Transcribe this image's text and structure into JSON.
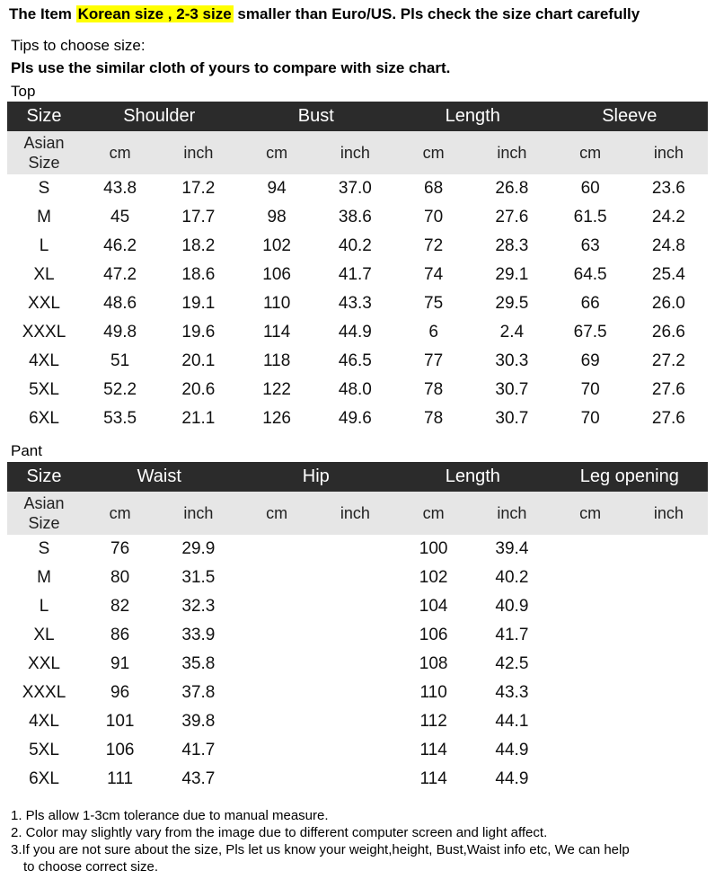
{
  "headline": {
    "prefix": "The Item",
    "highlight": "Korean size , 2-3 size",
    "suffix": " smaller than Euro/US. Pls check the size chart carefully"
  },
  "tips": {
    "line1": "Tips to choose size:",
    "line2": "Pls use the similar cloth of yours to compare with size chart."
  },
  "colors": {
    "header_bg": "#2b2b2b",
    "subheader_bg": "#e6e6e6",
    "highlight": "#ffff00"
  },
  "top": {
    "label": "Top",
    "headers": [
      "Size",
      "Shoulder",
      "Bust",
      "Length",
      "Sleeve"
    ],
    "asian_size": [
      "Asian",
      "Size"
    ],
    "units": [
      "cm",
      "inch",
      "cm",
      "inch",
      "cm",
      "inch",
      "cm",
      "inch"
    ],
    "rows": [
      [
        "S",
        "43.8",
        "17.2",
        "94",
        "37.0",
        "68",
        "26.8",
        "60",
        "23.6"
      ],
      [
        "M",
        "45",
        "17.7",
        "98",
        "38.6",
        "70",
        "27.6",
        "61.5",
        "24.2"
      ],
      [
        "L",
        "46.2",
        "18.2",
        "102",
        "40.2",
        "72",
        "28.3",
        "63",
        "24.8"
      ],
      [
        "XL",
        "47.2",
        "18.6",
        "106",
        "41.7",
        "74",
        "29.1",
        "64.5",
        "25.4"
      ],
      [
        "XXL",
        "48.6",
        "19.1",
        "110",
        "43.3",
        "75",
        "29.5",
        "66",
        "26.0"
      ],
      [
        "XXXL",
        "49.8",
        "19.6",
        "114",
        "44.9",
        "6",
        "2.4",
        "67.5",
        "26.6"
      ],
      [
        "4XL",
        "51",
        "20.1",
        "118",
        "46.5",
        "77",
        "30.3",
        "69",
        "27.2"
      ],
      [
        "5XL",
        "52.2",
        "20.6",
        "122",
        "48.0",
        "78",
        "30.7",
        "70",
        "27.6"
      ],
      [
        "6XL",
        "53.5",
        "21.1",
        "126",
        "49.6",
        "78",
        "30.7",
        "70",
        "27.6"
      ]
    ]
  },
  "pant": {
    "label": "Pant",
    "headers": [
      "Size",
      "Waist",
      "Hip",
      "Length",
      "Leg opening"
    ],
    "asian_size": [
      "Asian",
      "Size"
    ],
    "units": [
      "cm",
      "inch",
      "cm",
      "inch",
      "cm",
      "inch",
      "cm",
      "inch"
    ],
    "rows": [
      [
        "S",
        "76",
        "29.9",
        "",
        "",
        "100",
        "39.4",
        "",
        ""
      ],
      [
        "M",
        "80",
        "31.5",
        "",
        "",
        "102",
        "40.2",
        "",
        ""
      ],
      [
        "L",
        "82",
        "32.3",
        "",
        "",
        "104",
        "40.9",
        "",
        ""
      ],
      [
        "XL",
        "86",
        "33.9",
        "",
        "",
        "106",
        "41.7",
        "",
        ""
      ],
      [
        "XXL",
        "91",
        "35.8",
        "",
        "",
        "108",
        "42.5",
        "",
        ""
      ],
      [
        "XXXL",
        "96",
        "37.8",
        "",
        "",
        "110",
        "43.3",
        "",
        ""
      ],
      [
        "4XL",
        "101",
        "39.8",
        "",
        "",
        "112",
        "44.1",
        "",
        ""
      ],
      [
        "5XL",
        "106",
        "41.7",
        "",
        "",
        "114",
        "44.9",
        "",
        ""
      ],
      [
        "6XL",
        "111",
        "43.7",
        "",
        "",
        "114",
        "44.9",
        "",
        ""
      ]
    ]
  },
  "notes": [
    "1. Pls allow 1-3cm tolerance due to manual measure.",
    "2. Color may slightly vary from the image due to different computer screen and light affect.",
    "3.If you are not sure about the size, Pls let us know your weight,height, Bust,Waist info etc, We can help",
    "to choose correct size."
  ]
}
